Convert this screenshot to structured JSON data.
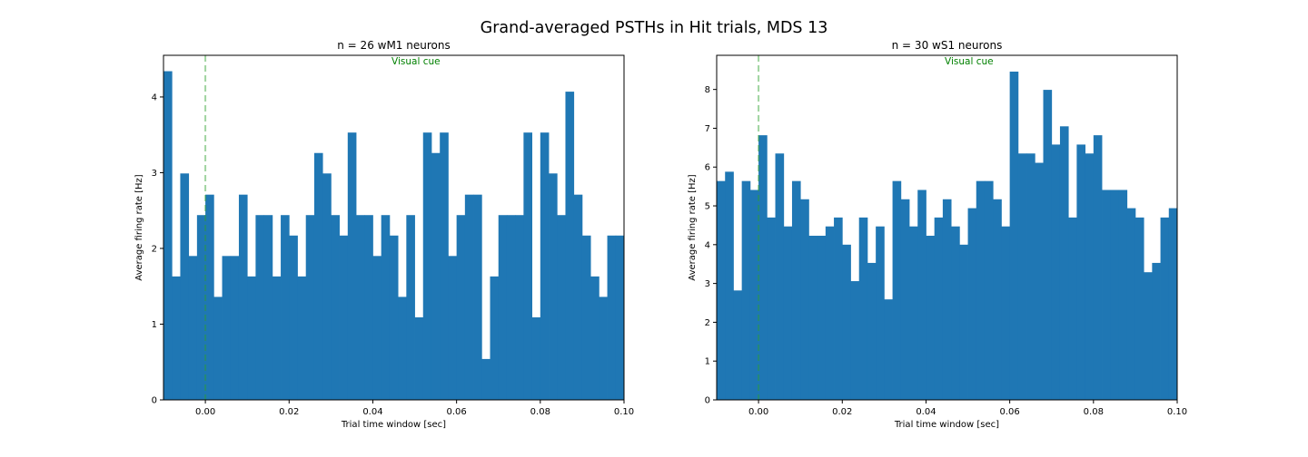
{
  "figure": {
    "suptitle": "Grand-averaged PSTHs in Hit trials, MDS 13",
    "bar_color": "#1f77b4",
    "cue_line_color": "#2ca02c"
  },
  "chart_data": [
    {
      "type": "bar",
      "title": "n = 26 wM1 neurons",
      "xlabel": "Trial time window [sec]",
      "ylabel": "Average firing rate [Hz]",
      "xlim": [
        -0.01,
        0.1
      ],
      "ylim": [
        0,
        4.55
      ],
      "xticks": [
        0.0,
        0.02,
        0.04,
        0.06,
        0.08,
        0.1
      ],
      "xtick_labels": [
        "0.00",
        "0.02",
        "0.04",
        "0.06",
        "0.08",
        "0.10"
      ],
      "yticks": [
        0,
        1,
        2,
        3,
        4
      ],
      "ytick_labels": [
        "0",
        "1",
        "2",
        "3",
        "4"
      ],
      "bin_width_sec": 0.002,
      "bin_starts": [
        -0.01,
        -0.008,
        -0.006,
        -0.004,
        -0.002,
        0.0,
        0.002,
        0.004,
        0.006,
        0.008,
        0.01,
        0.012,
        0.014,
        0.016,
        0.018,
        0.02,
        0.022,
        0.024,
        0.026,
        0.028,
        0.03,
        0.032,
        0.034,
        0.036,
        0.038,
        0.04,
        0.042,
        0.044,
        0.046,
        0.048,
        0.05,
        0.052,
        0.054,
        0.056,
        0.058,
        0.06,
        0.062,
        0.064,
        0.066,
        0.068,
        0.07,
        0.072,
        0.074,
        0.076,
        0.078,
        0.08,
        0.082,
        0.084,
        0.086,
        0.088,
        0.09,
        0.092,
        0.094,
        0.096,
        0.098
      ],
      "values": [
        4.34,
        1.63,
        2.99,
        1.9,
        2.44,
        2.71,
        1.36,
        1.9,
        1.9,
        2.71,
        1.63,
        2.44,
        2.44,
        1.63,
        2.44,
        2.17,
        1.63,
        2.44,
        3.26,
        2.99,
        2.44,
        2.17,
        3.53,
        2.44,
        2.44,
        1.9,
        2.44,
        2.17,
        1.36,
        2.44,
        1.09,
        3.53,
        3.26,
        3.53,
        1.9,
        2.44,
        2.71,
        2.71,
        0.54,
        1.63,
        2.44,
        2.44,
        2.44,
        3.53,
        1.09,
        3.53,
        2.99,
        2.44,
        4.07,
        2.71,
        2.17,
        1.63,
        1.36,
        2.17,
        2.17
      ],
      "cue_time": 0.0,
      "cue_label": "Visual cue"
    },
    {
      "type": "bar",
      "title": "n = 30 wS1 neurons",
      "xlabel": "Trial time window [sec]",
      "ylabel": "Average firing rate [Hz]",
      "xlim": [
        -0.01,
        0.1
      ],
      "ylim": [
        0,
        8.88
      ],
      "xticks": [
        0.0,
        0.02,
        0.04,
        0.06,
        0.08,
        0.1
      ],
      "xtick_labels": [
        "0.00",
        "0.02",
        "0.04",
        "0.06",
        "0.08",
        "0.10"
      ],
      "yticks": [
        0,
        1,
        2,
        3,
        4,
        5,
        6,
        7,
        8
      ],
      "ytick_labels": [
        "0",
        "1",
        "2",
        "3",
        "4",
        "5",
        "6",
        "7",
        "8"
      ],
      "bin_width_sec": 0.002,
      "bin_starts": [
        -0.01,
        -0.008,
        -0.006,
        -0.004,
        -0.002,
        0.0,
        0.002,
        0.004,
        0.006,
        0.008,
        0.01,
        0.012,
        0.014,
        0.016,
        0.018,
        0.02,
        0.022,
        0.024,
        0.026,
        0.028,
        0.03,
        0.032,
        0.034,
        0.036,
        0.038,
        0.04,
        0.042,
        0.044,
        0.046,
        0.048,
        0.05,
        0.052,
        0.054,
        0.056,
        0.058,
        0.06,
        0.062,
        0.064,
        0.066,
        0.068,
        0.07,
        0.072,
        0.074,
        0.076,
        0.078,
        0.08,
        0.082,
        0.084,
        0.086,
        0.088,
        0.09,
        0.092,
        0.094,
        0.096,
        0.098
      ],
      "values": [
        5.64,
        5.88,
        2.82,
        5.64,
        5.41,
        6.82,
        4.7,
        6.35,
        4.47,
        5.64,
        5.17,
        4.23,
        4.23,
        4.47,
        4.7,
        4.0,
        3.06,
        4.7,
        3.53,
        4.47,
        2.59,
        5.64,
        5.17,
        4.47,
        5.41,
        4.23,
        4.7,
        5.17,
        4.47,
        4.0,
        4.94,
        5.64,
        5.64,
        5.17,
        4.47,
        8.46,
        6.35,
        6.35,
        6.11,
        7.99,
        6.58,
        7.05,
        4.7,
        6.58,
        6.35,
        6.82,
        5.41,
        5.41,
        5.41,
        4.94,
        4.7,
        3.29,
        3.53,
        4.7,
        4.94
      ],
      "cue_time": 0.0,
      "cue_label": "Visual cue"
    }
  ]
}
